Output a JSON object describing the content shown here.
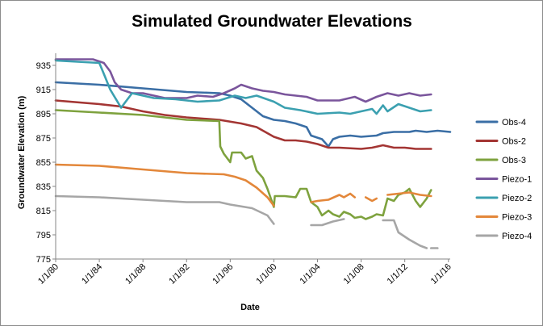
{
  "chart_data": {
    "type": "line",
    "title": "Simulated Groundwater Elevations",
    "xlabel": "Date",
    "ylabel": "Groundwater Elevation  (m)",
    "x_axis_type": "date",
    "xlim": [
      "1980-01-01",
      "2016-03-01"
    ],
    "x_ticks": [
      "1980-01-01",
      "1984-01-01",
      "1988-01-01",
      "1992-01-01",
      "1996-01-01",
      "2000-01-01",
      "2004-01-01",
      "2008-01-01",
      "2012-01-01",
      "2016-01-01"
    ],
    "x_tick_labels": [
      "1/1/80",
      "1/1/84",
      "1/1/88",
      "1/1/92",
      "1/1/96",
      "1/1/00",
      "1/1/04",
      "1/1/08",
      "1/1/12",
      "1/1/16"
    ],
    "ylim": [
      775,
      945
    ],
    "y_ticks": [
      775,
      795,
      815,
      835,
      855,
      875,
      895,
      915,
      935
    ],
    "grid": false,
    "legend_position": "right",
    "series": [
      {
        "name": "Obs-4",
        "color": "#3a6ea5",
        "segments": [
          [
            [
              "1980-01-01",
              921
            ],
            [
              "1984-01-01",
              919
            ],
            [
              "1988-01-01",
              916
            ],
            [
              "1992-01-01",
              913
            ],
            [
              "1995-01-01",
              912
            ],
            [
              "1996-01-01",
              910
            ],
            [
              "1997-01-01",
              907
            ],
            [
              "1998-01-01",
              900
            ],
            [
              "1999-01-01",
              893
            ],
            [
              "2000-01-01",
              890
            ],
            [
              "2001-01-01",
              889
            ],
            [
              "2002-01-01",
              887
            ],
            [
              "2003-01-01",
              884
            ],
            [
              "2003-06-01",
              877
            ],
            [
              "2004-06-01",
              874
            ],
            [
              "2005-01-01",
              868
            ],
            [
              "2005-06-01",
              874
            ],
            [
              "2006-01-01",
              876
            ],
            [
              "2007-01-01",
              877
            ],
            [
              "2008-01-01",
              876
            ],
            [
              "2009-06-01",
              877
            ],
            [
              "2010-01-01",
              879
            ],
            [
              "2011-01-01",
              880
            ],
            [
              "2012-06-01",
              880
            ],
            [
              "2013-01-01",
              881
            ],
            [
              "2014-01-01",
              880
            ],
            [
              "2015-01-01",
              881
            ],
            [
              "2016-03-01",
              880
            ]
          ]
        ]
      },
      {
        "name": "Obs-2",
        "color": "#a33533",
        "segments": [
          [
            [
              "1980-01-01",
              906
            ],
            [
              "1984-01-01",
              903
            ],
            [
              "1986-01-01",
              901
            ],
            [
              "1988-01-01",
              897
            ],
            [
              "1990-01-01",
              894
            ],
            [
              "1992-01-01",
              892
            ],
            [
              "1995-01-01",
              890
            ],
            [
              "1997-01-01",
              887
            ],
            [
              "1998-06-01",
              884
            ],
            [
              "2000-01-01",
              876
            ],
            [
              "2001-01-01",
              873
            ],
            [
              "2002-01-01",
              873
            ],
            [
              "2003-01-01",
              872
            ],
            [
              "2004-01-01",
              870
            ],
            [
              "2005-01-01",
              867
            ],
            [
              "2006-01-01",
              867
            ],
            [
              "2008-01-01",
              866
            ],
            [
              "2009-01-01",
              867
            ],
            [
              "2010-01-01",
              869
            ],
            [
              "2011-01-01",
              867
            ],
            [
              "2012-01-01",
              867
            ],
            [
              "2013-01-01",
              866
            ],
            [
              "2014-06-01",
              866
            ]
          ]
        ]
      },
      {
        "name": "Obs-3",
        "color": "#7ea23e",
        "segments": [
          [
            [
              "1980-01-01",
              898
            ],
            [
              "1984-01-01",
              896
            ],
            [
              "1988-01-01",
              894
            ],
            [
              "1990-01-01",
              892
            ],
            [
              "1992-01-01",
              890
            ],
            [
              "1995-01-01",
              889
            ],
            [
              "1995-02-01",
              868
            ],
            [
              "1995-06-01",
              862
            ],
            [
              "1996-01-01",
              855
            ],
            [
              "1996-03-01",
              863
            ],
            [
              "1997-01-01",
              863
            ],
            [
              "1997-06-01",
              858
            ],
            [
              "1998-01-01",
              860
            ],
            [
              "1998-06-01",
              848
            ],
            [
              "1999-01-01",
              842
            ],
            [
              "1999-06-01",
              833
            ],
            [
              "2000-01-01",
              818
            ],
            [
              "2000-02-01",
              827
            ],
            [
              "2001-01-01",
              827
            ],
            [
              "2002-01-01",
              826
            ],
            [
              "2002-06-01",
              833
            ],
            [
              "2003-01-01",
              833
            ],
            [
              "2003-06-01",
              822
            ],
            [
              "2004-01-01",
              818
            ],
            [
              "2004-06-01",
              811
            ],
            [
              "2005-01-01",
              815
            ],
            [
              "2005-06-01",
              812
            ],
            [
              "2006-01-01",
              810
            ],
            [
              "2006-06-01",
              814
            ],
            [
              "2007-01-01",
              812
            ],
            [
              "2007-06-01",
              809
            ],
            [
              "2008-01-01",
              810
            ],
            [
              "2008-06-01",
              808
            ],
            [
              "2009-01-01",
              810
            ],
            [
              "2009-06-01",
              812
            ],
            [
              "2010-01-01",
              811
            ],
            [
              "2010-06-01",
              825
            ],
            [
              "2011-01-01",
              823
            ],
            [
              "2011-06-01",
              828
            ],
            [
              "2012-01-01",
              830
            ],
            [
              "2012-06-01",
              833
            ],
            [
              "2013-01-01",
              823
            ],
            [
              "2013-06-01",
              818
            ],
            [
              "2014-01-01",
              825
            ],
            [
              "2014-06-01",
              832
            ]
          ]
        ]
      },
      {
        "name": "Piezo-1",
        "color": "#7a559c",
        "segments": [
          [
            [
              "1980-01-01",
              940
            ],
            [
              "1983-06-01",
              940
            ],
            [
              "1984-06-01",
              937
            ],
            [
              "1985-01-01",
              930
            ],
            [
              "1985-06-01",
              921
            ],
            [
              "1986-01-01",
              915
            ],
            [
              "1987-01-01",
              912
            ],
            [
              "1988-01-01",
              912
            ],
            [
              "1989-01-01",
              910
            ],
            [
              "1990-01-01",
              908
            ],
            [
              "1992-01-01",
              908
            ],
            [
              "1993-01-01",
              910
            ],
            [
              "1994-06-01",
              909
            ],
            [
              "1995-06-01",
              912
            ],
            [
              "1996-06-01",
              916
            ],
            [
              "1997-01-01",
              919
            ],
            [
              "1998-01-01",
              916
            ],
            [
              "1999-01-01",
              914
            ],
            [
              "2000-01-01",
              913
            ],
            [
              "2001-01-01",
              911
            ],
            [
              "2002-01-01",
              910
            ],
            [
              "2003-01-01",
              909
            ],
            [
              "2004-01-01",
              906
            ],
            [
              "2006-01-01",
              906
            ],
            [
              "2007-06-01",
              909
            ],
            [
              "2008-06-01",
              905
            ],
            [
              "2009-06-01",
              909
            ],
            [
              "2010-06-01",
              912
            ],
            [
              "2011-06-01",
              910
            ],
            [
              "2012-06-01",
              912
            ],
            [
              "2013-06-01",
              910
            ],
            [
              "2014-06-01",
              911
            ]
          ]
        ]
      },
      {
        "name": "Piezo-2",
        "color": "#3ba0b0",
        "segments": [
          [
            [
              "1980-01-01",
              939
            ],
            [
              "1984-01-01",
              937
            ],
            [
              "1984-06-01",
              928
            ],
            [
              "1985-01-01",
              915
            ],
            [
              "1986-01-01",
              900
            ],
            [
              "1987-01-01",
              912
            ],
            [
              "1989-01-01",
              908
            ],
            [
              "1991-01-01",
              907
            ],
            [
              "1993-01-01",
              905
            ],
            [
              "1995-01-01",
              906
            ],
            [
              "1996-06-01",
              910
            ],
            [
              "1997-06-01",
              908
            ],
            [
              "1998-06-01",
              910
            ],
            [
              "2000-01-01",
              905
            ],
            [
              "2001-01-01",
              900
            ],
            [
              "2002-06-01",
              898
            ],
            [
              "2004-01-01",
              895
            ],
            [
              "2006-01-01",
              896
            ],
            [
              "2007-01-01",
              895
            ],
            [
              "2008-01-01",
              897
            ],
            [
              "2009-01-01",
              899
            ],
            [
              "2009-06-01",
              895
            ],
            [
              "2010-01-01",
              902
            ],
            [
              "2010-06-01",
              897
            ],
            [
              "2011-06-01",
              903
            ],
            [
              "2012-06-01",
              900
            ],
            [
              "2013-06-01",
              897
            ],
            [
              "2014-06-01",
              898
            ]
          ]
        ]
      },
      {
        "name": "Piezo-3",
        "color": "#e3873a",
        "segments": [
          [
            [
              "1980-01-01",
              853
            ],
            [
              "1984-01-01",
              852
            ],
            [
              "1988-01-01",
              849
            ],
            [
              "1992-01-01",
              846
            ],
            [
              "1995-06-01",
              845
            ],
            [
              "1996-06-01",
              843
            ],
            [
              "1997-06-01",
              840
            ],
            [
              "1998-06-01",
              834
            ],
            [
              "1999-06-01",
              826
            ],
            [
              "2000-01-01",
              819
            ]
          ],
          [
            [
              "2003-06-01",
              822
            ],
            [
              "2004-01-01",
              823
            ],
            [
              "2005-01-01",
              824
            ],
            [
              "2006-01-01",
              828
            ],
            [
              "2006-06-01",
              826
            ],
            [
              "2007-01-01",
              829
            ],
            [
              "2007-06-01",
              826
            ]
          ],
          [
            [
              "2008-06-01",
              826
            ],
            [
              "2009-01-01",
              823
            ],
            [
              "2009-06-01",
              825
            ]
          ],
          [
            [
              "2010-06-01",
              828
            ],
            [
              "2011-06-01",
              829
            ],
            [
              "2012-06-01",
              830
            ],
            [
              "2013-06-01",
              828
            ],
            [
              "2014-06-01",
              827
            ]
          ]
        ]
      },
      {
        "name": "Piezo-4",
        "color": "#a6a6a6",
        "segments": [
          [
            [
              "1980-01-01",
              827
            ],
            [
              "1984-01-01",
              826
            ],
            [
              "1988-01-01",
              824
            ],
            [
              "1992-01-01",
              822
            ],
            [
              "1995-01-01",
              822
            ],
            [
              "1996-01-01",
              820
            ],
            [
              "1998-01-01",
              817
            ],
            [
              "1999-06-01",
              811
            ],
            [
              "2000-01-01",
              804
            ]
          ],
          [
            [
              "2003-06-01",
              803
            ],
            [
              "2004-06-01",
              803
            ],
            [
              "2005-06-01",
              806
            ],
            [
              "2006-06-01",
              808
            ]
          ],
          [
            [
              "2010-01-01",
              807
            ],
            [
              "2011-01-01",
              807
            ],
            [
              "2011-06-01",
              797
            ],
            [
              "2012-06-01",
              791
            ],
            [
              "2013-06-01",
              786
            ],
            [
              "2014-01-01",
              784
            ]
          ],
          [
            [
              "2014-06-01",
              784
            ],
            [
              "2015-01-01",
              784
            ]
          ]
        ]
      }
    ]
  }
}
